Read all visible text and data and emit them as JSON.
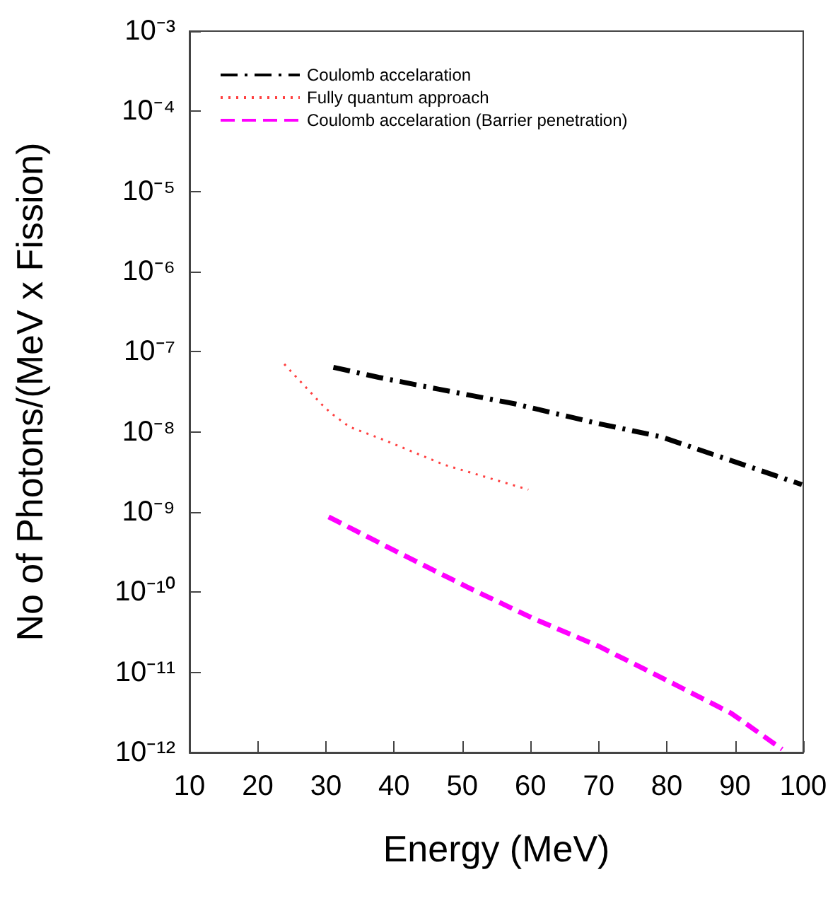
{
  "chart_data": {
    "type": "line",
    "xlabel": "Energy (MeV)",
    "ylabel": "No of Photons/(MeV x Fission)",
    "xlim": [
      10,
      100
    ],
    "xticks": [
      10,
      20,
      30,
      40,
      50,
      60,
      70,
      80,
      90,
      100
    ],
    "ylim": [
      1e-12,
      0.001
    ],
    "log": "y",
    "yticks": [
      {
        "value": 1e-12,
        "label": "10⁻¹²"
      },
      {
        "value": 1e-11,
        "label": "10⁻¹¹"
      },
      {
        "value": 1e-10,
        "label": "10⁻¹⁰"
      },
      {
        "value": 1e-09,
        "label": "10⁻⁹"
      },
      {
        "value": 1e-08,
        "label": "10⁻⁸"
      },
      {
        "value": 1e-07,
        "label": "10⁻⁷"
      },
      {
        "value": 1e-06,
        "label": "10⁻⁶"
      },
      {
        "value": 1e-05,
        "label": "10⁻⁵"
      },
      {
        "value": 0.0001,
        "label": "10⁻⁴"
      },
      {
        "value": 0.001,
        "label": "10⁻³"
      }
    ],
    "grid": false,
    "legend": "top left",
    "marker": "none",
    "series": [
      {
        "name": "Coulomb accelaration",
        "color": "#000000",
        "line_style": "dashdot",
        "x": [
          31.1,
          37.7,
          46.6,
          57.6,
          69.4,
          79.1,
          89.4,
          99.8
        ],
        "values": [
          6.4e-08,
          4.8e-08,
          3.4e-08,
          2.25e-08,
          1.3e-08,
          8.7e-09,
          4.4e-09,
          2.2e-09
        ]
      },
      {
        "name": "Fully quantum approach",
        "color": "#ff4040",
        "line_style": "dotted",
        "x": [
          23.9,
          29.4,
          30.8,
          33.5,
          38.4,
          47.3,
          59.7
        ],
        "values": [
          7e-08,
          2.2e-08,
          1.7e-08,
          1.15e-08,
          8e-09,
          3.9e-09,
          1.9e-09
        ]
      },
      {
        "name": "Coulomb accelaration (Barrier penetration)",
        "color": "#ff00ff",
        "line_style": "dashed",
        "x": [
          30.4,
          40.4,
          50.8,
          60.4,
          70.1,
          79.8,
          89.4,
          96.9
        ],
        "values": [
          8.7e-10,
          3.2e-10,
          1.15e-10,
          4.7e-11,
          2.1e-11,
          8.1e-12,
          3.1e-12,
          1.1e-12
        ]
      }
    ]
  }
}
